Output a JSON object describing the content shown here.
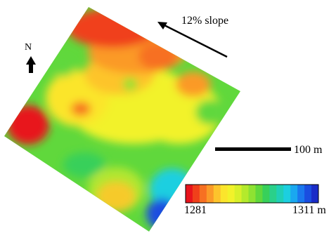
{
  "figure": {
    "slope_label": "12% slope",
    "north_label": "N",
    "scale_label": "100 m"
  },
  "legend": {
    "min_label": "1281",
    "max_label": "1311 m",
    "min_value": 1281,
    "max_value": 1311,
    "unit": "m",
    "colors": [
      "#e8141c",
      "#f0401a",
      "#f77022",
      "#fb9a28",
      "#fdc42c",
      "#fbe52c",
      "#f2f22a",
      "#d8f02a",
      "#b4ea2c",
      "#8ee232",
      "#60d83c",
      "#38d05a",
      "#2ad08a",
      "#20cfb6",
      "#1ccfe0",
      "#1aa8f0",
      "#1a78ee",
      "#1a4ee0",
      "#1a2cc8"
    ]
  },
  "colors": {
    "red": "#e8141c",
    "orange": "#f77022",
    "yellow": "#f2f22a",
    "green": "#38d05a",
    "cyan": "#1ccfe0",
    "blue": "#1a2cc8"
  }
}
